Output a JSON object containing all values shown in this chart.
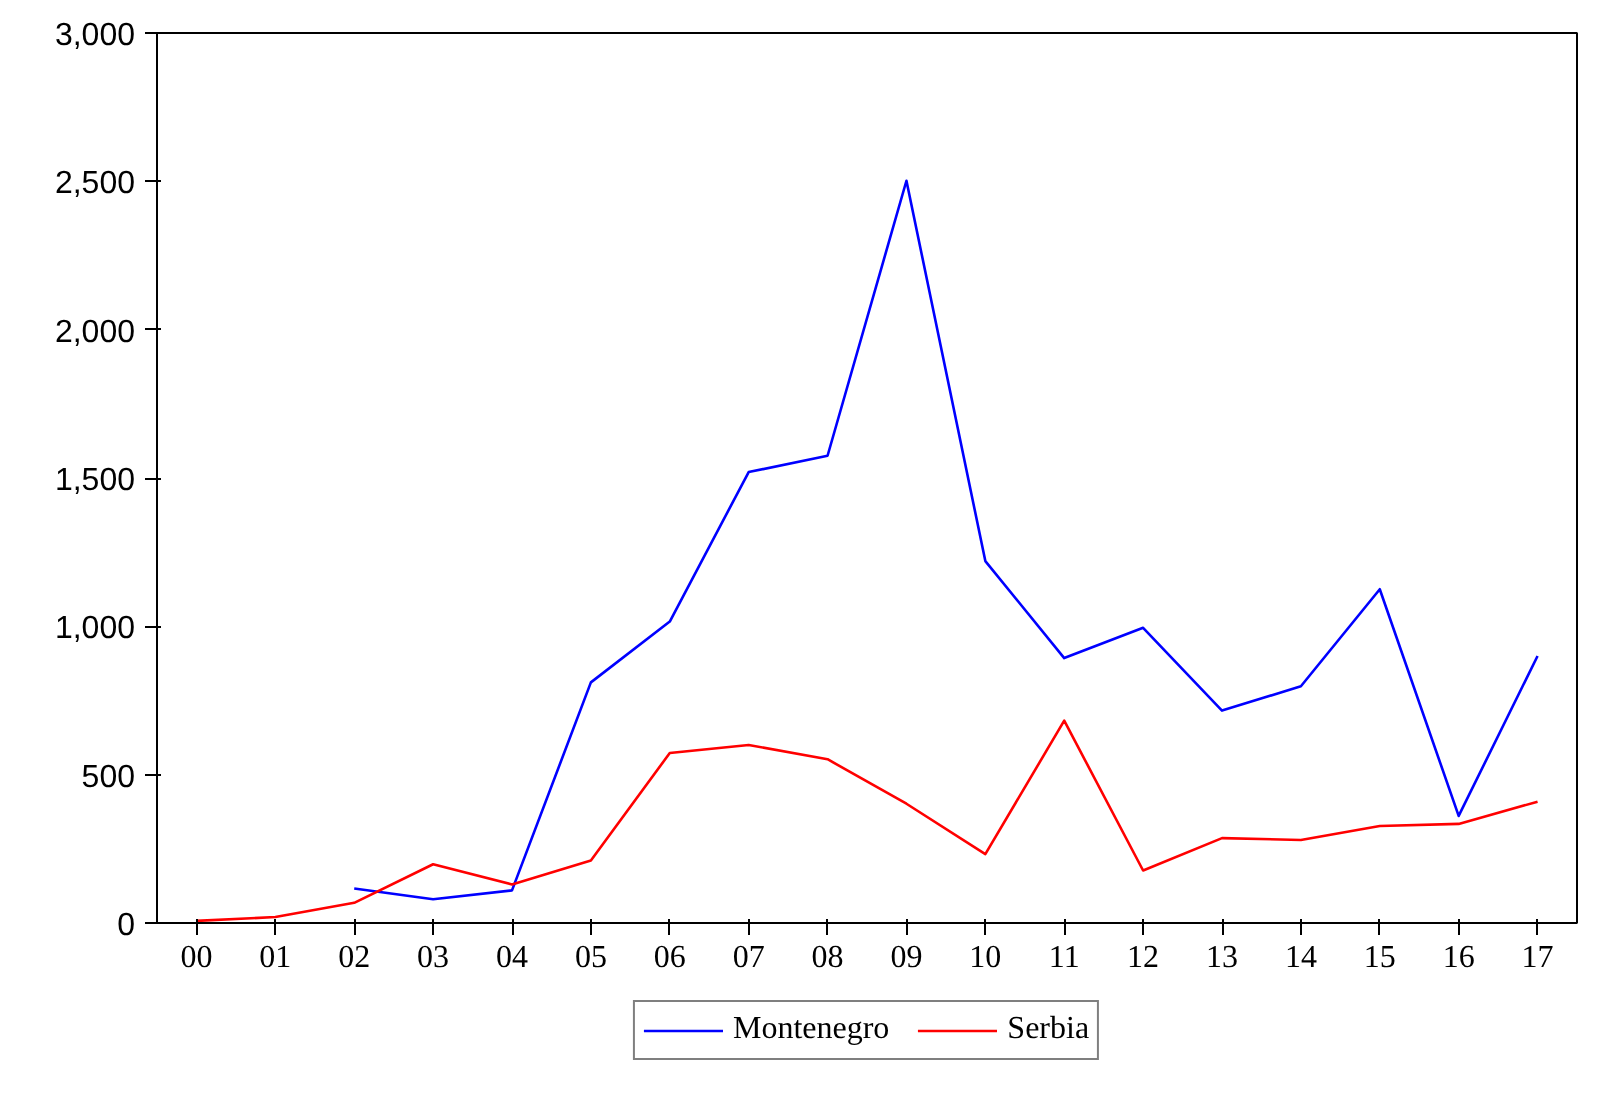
{
  "chart_data": {
    "type": "line",
    "categories": [
      "00",
      "01",
      "02",
      "03",
      "04",
      "05",
      "06",
      "07",
      "08",
      "09",
      "10",
      "11",
      "12",
      "13",
      "14",
      "15",
      "16",
      "17"
    ],
    "series": [
      {
        "name": "Montenegro",
        "color": "#0000ff",
        "values": [
          null,
          null,
          116,
          80,
          110,
          811,
          1016,
          1520,
          1575,
          2502,
          1220,
          893,
          995,
          716,
          798,
          1125,
          361,
          900
        ]
      },
      {
        "name": "Serbia",
        "color": "#ff0000",
        "values": [
          7,
          20,
          68,
          198,
          130,
          211,
          573,
          600,
          552,
          402,
          232,
          682,
          177,
          286,
          280,
          327,
          334,
          409
        ]
      }
    ],
    "ylim": [
      0,
      3000
    ],
    "yticks": [
      0,
      500,
      {
        "value": 1000,
        "label": "1,000"
      },
      {
        "value": 1500,
        "label": "1,500"
      },
      {
        "value": 2000,
        "label": "2,000"
      },
      {
        "value": 2500,
        "label": "2,500"
      },
      {
        "value": 3000,
        "label": "3,000"
      }
    ],
    "grid": false,
    "legend": "bottom"
  }
}
